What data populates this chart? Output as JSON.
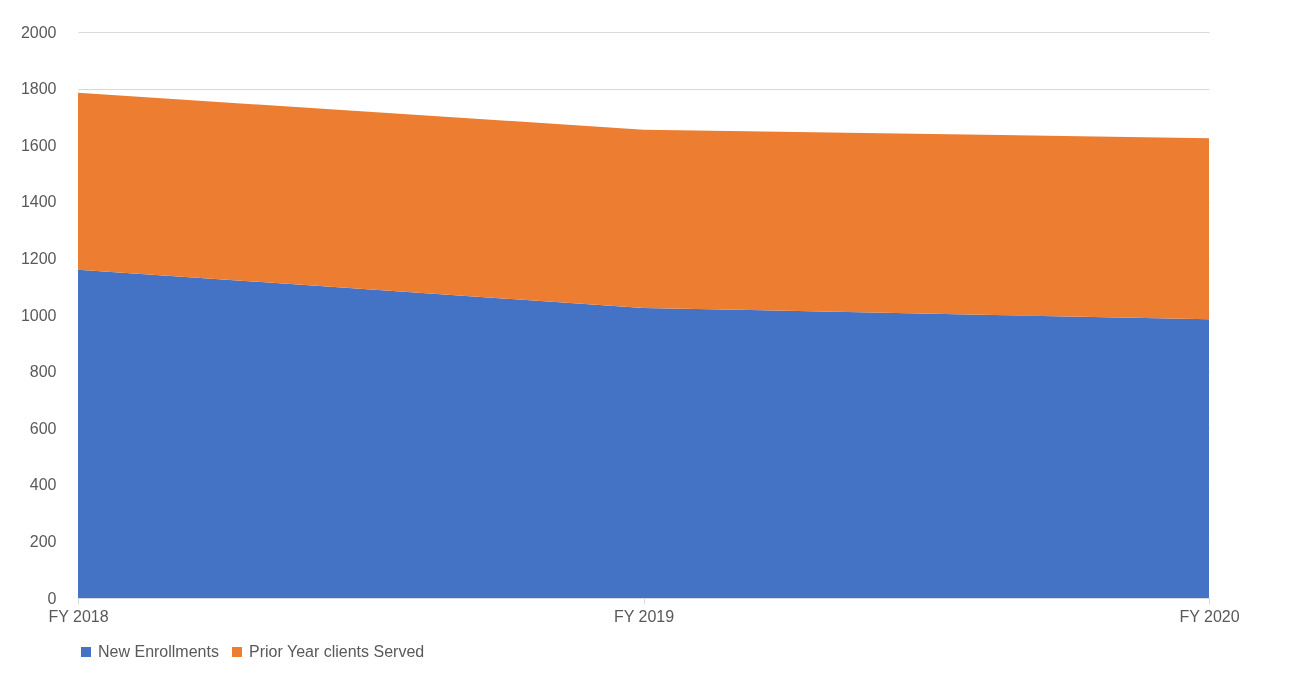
{
  "chart_data": {
    "type": "area",
    "stacked": true,
    "categories": [
      "FY 2018",
      "FY 2019",
      "FY 2020"
    ],
    "series": [
      {
        "name": "New Enrollments",
        "color": "#4472c4",
        "values": [
          1160,
          1025,
          985
        ]
      },
      {
        "name": "Prior Year clients Served",
        "color": "#ed7d31",
        "values": [
          625,
          630,
          640
        ]
      }
    ],
    "ylim": [
      0,
      2000
    ],
    "yticks": [
      0,
      200,
      400,
      600,
      800,
      1000,
      1200,
      1400,
      1600,
      1800,
      2000
    ],
    "grid": "y",
    "legend": "bottom"
  }
}
